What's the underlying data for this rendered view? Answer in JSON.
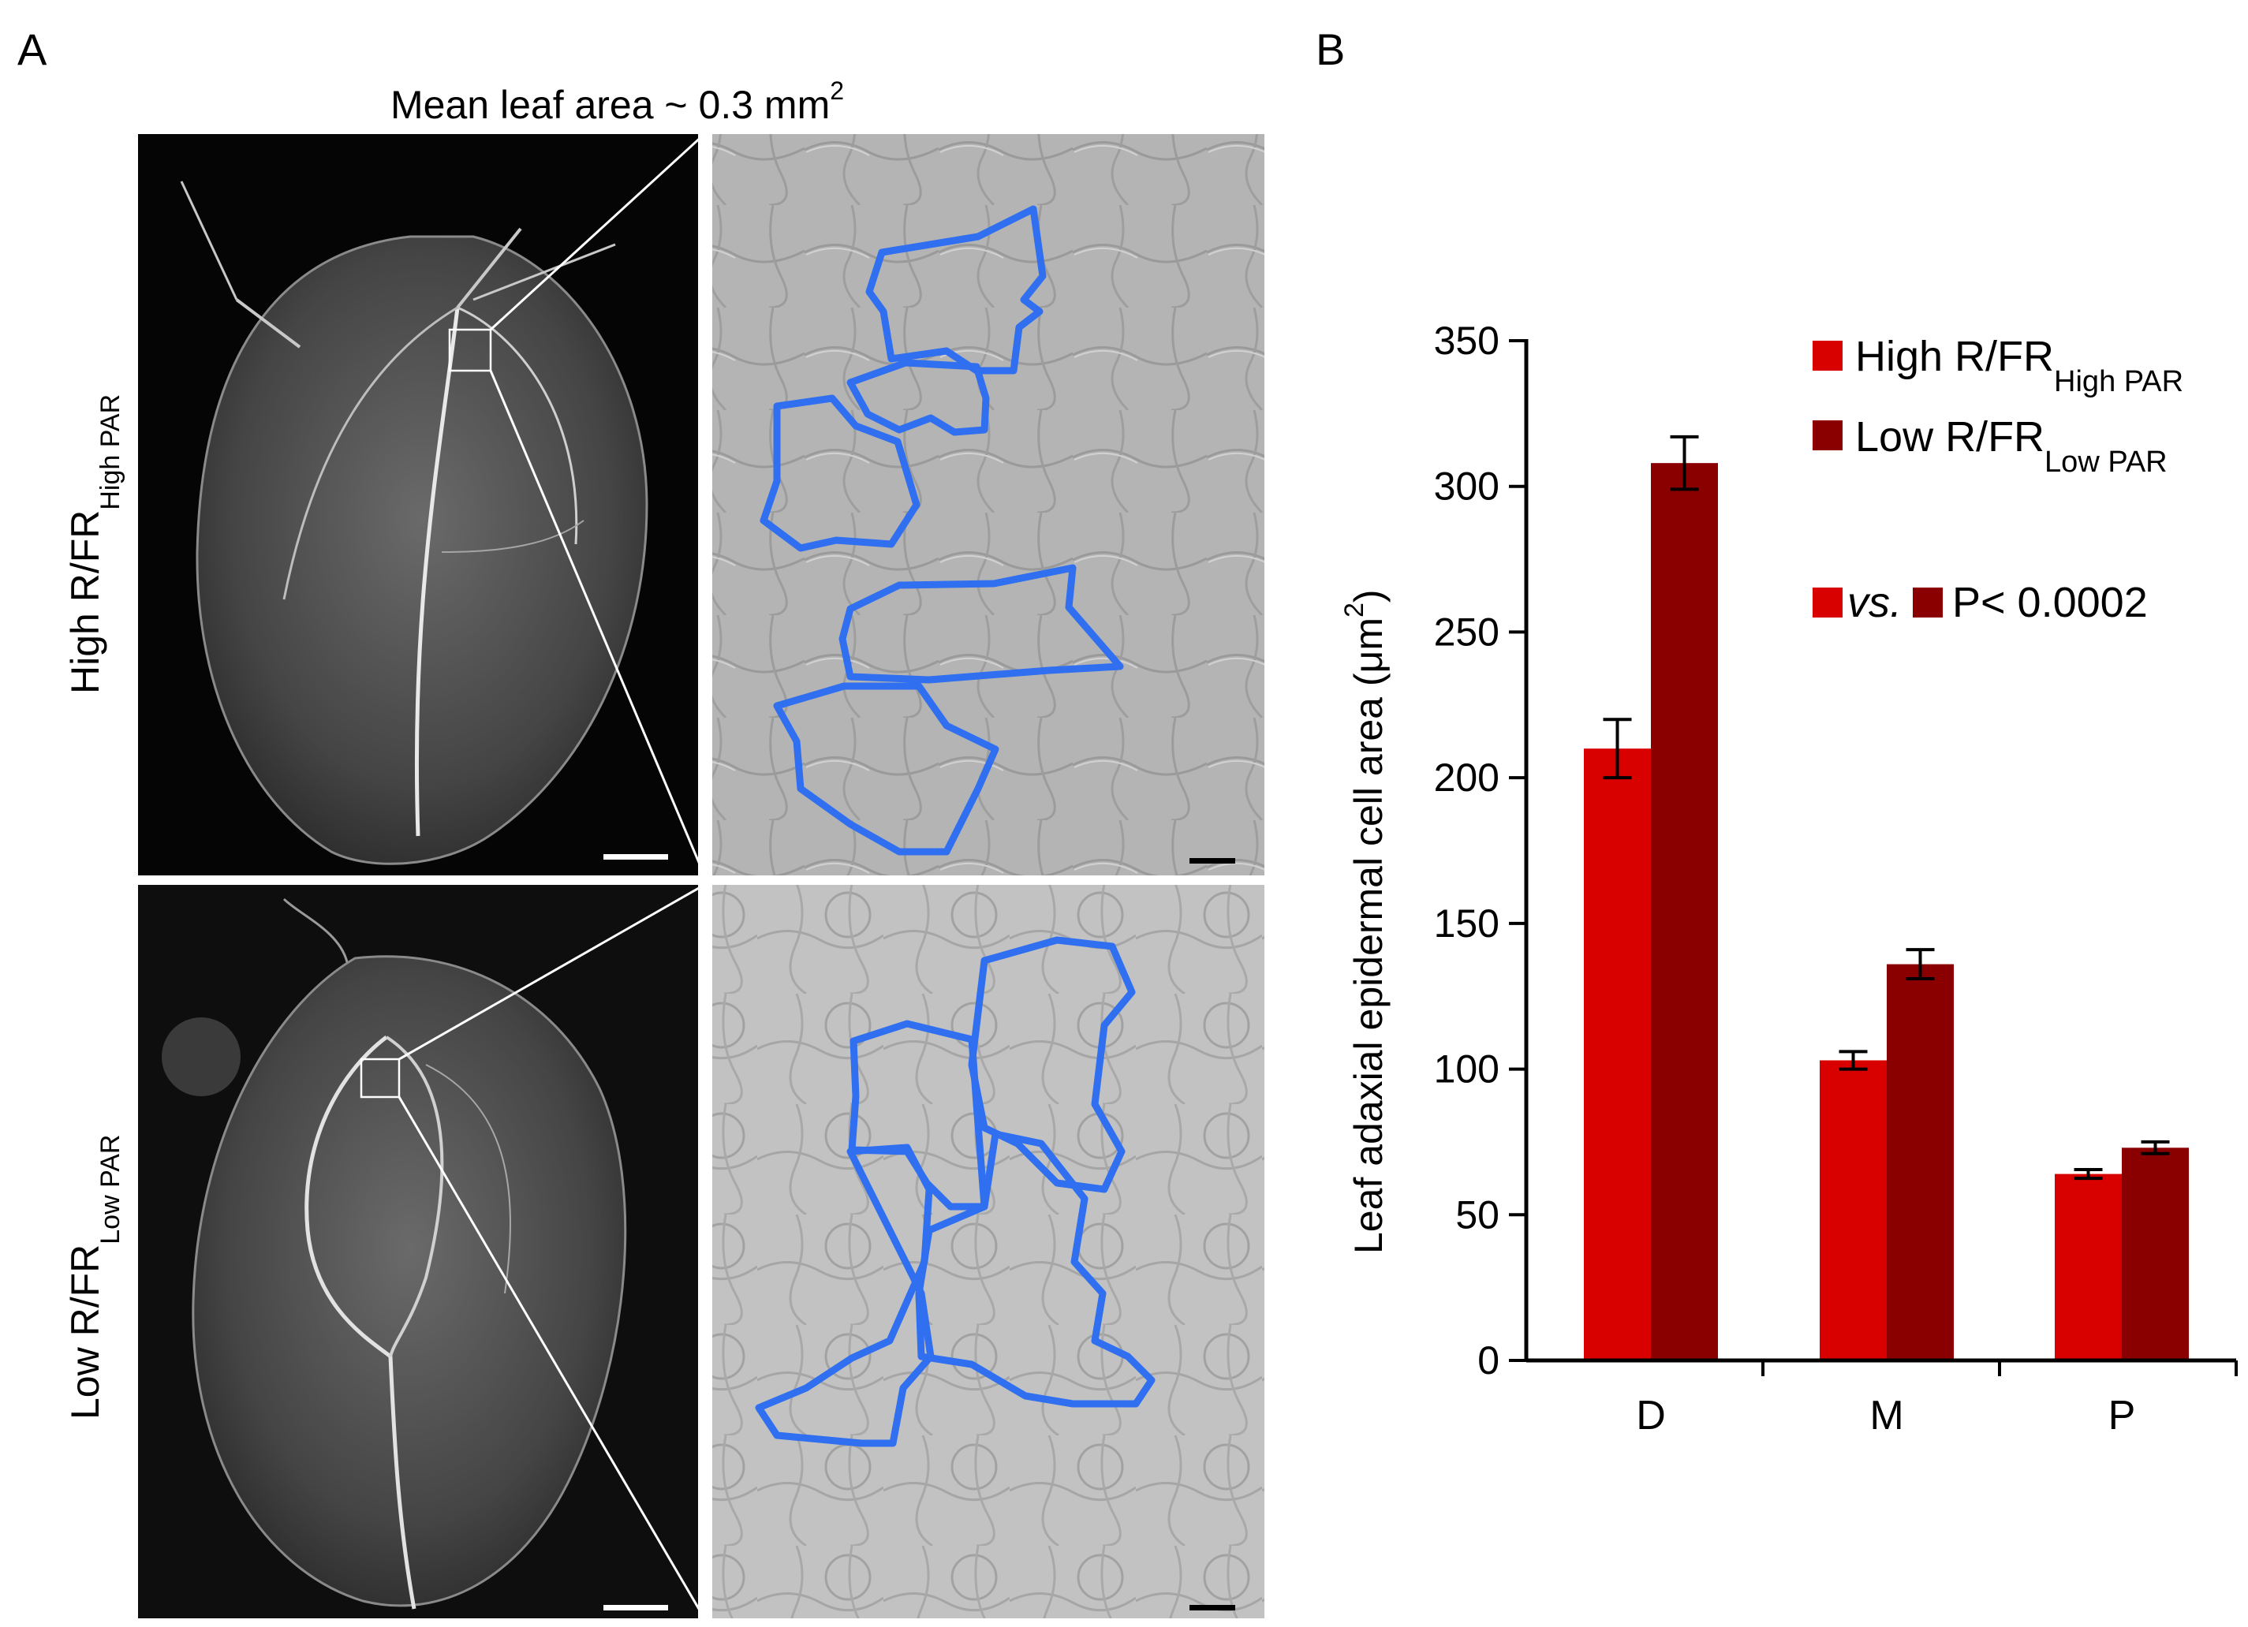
{
  "panel_a": {
    "label": "A",
    "title_main": "Mean leaf area ~ 0.3 mm",
    "title_sup": "2",
    "row1_label_main": "High R/FR",
    "row1_label_sub": "High PAR",
    "row2_label_main": "Low R/FR",
    "row2_label_sub": "Low PAR"
  },
  "panel_b": {
    "label": "B"
  },
  "colors": {
    "high": "#d90000",
    "low": "#8a0000",
    "outline": "#2f6ff0"
  },
  "chart_data": {
    "type": "bar",
    "categories": [
      "D",
      "M",
      "P"
    ],
    "ylabel_main": "Leaf adaxial epidermal cell area (μm",
    "ylabel_sup": "2",
    "ylabel_close": ")",
    "ylim": [
      0,
      350
    ],
    "yticks": [
      0,
      50,
      100,
      150,
      200,
      250,
      300,
      350
    ],
    "legend_position": "top-right",
    "series": [
      {
        "name_main": "High R/FR",
        "name_sub": "High PAR",
        "values": [
          210,
          103,
          64
        ],
        "errors": [
          10,
          3,
          1.5
        ]
      },
      {
        "name_main": "Low R/FR",
        "name_sub": "Low PAR",
        "values": [
          308,
          136,
          73
        ],
        "errors": [
          9,
          5,
          2
        ]
      }
    ],
    "stat_vs": "vs.",
    "stat_p": "P< 0.0002"
  }
}
